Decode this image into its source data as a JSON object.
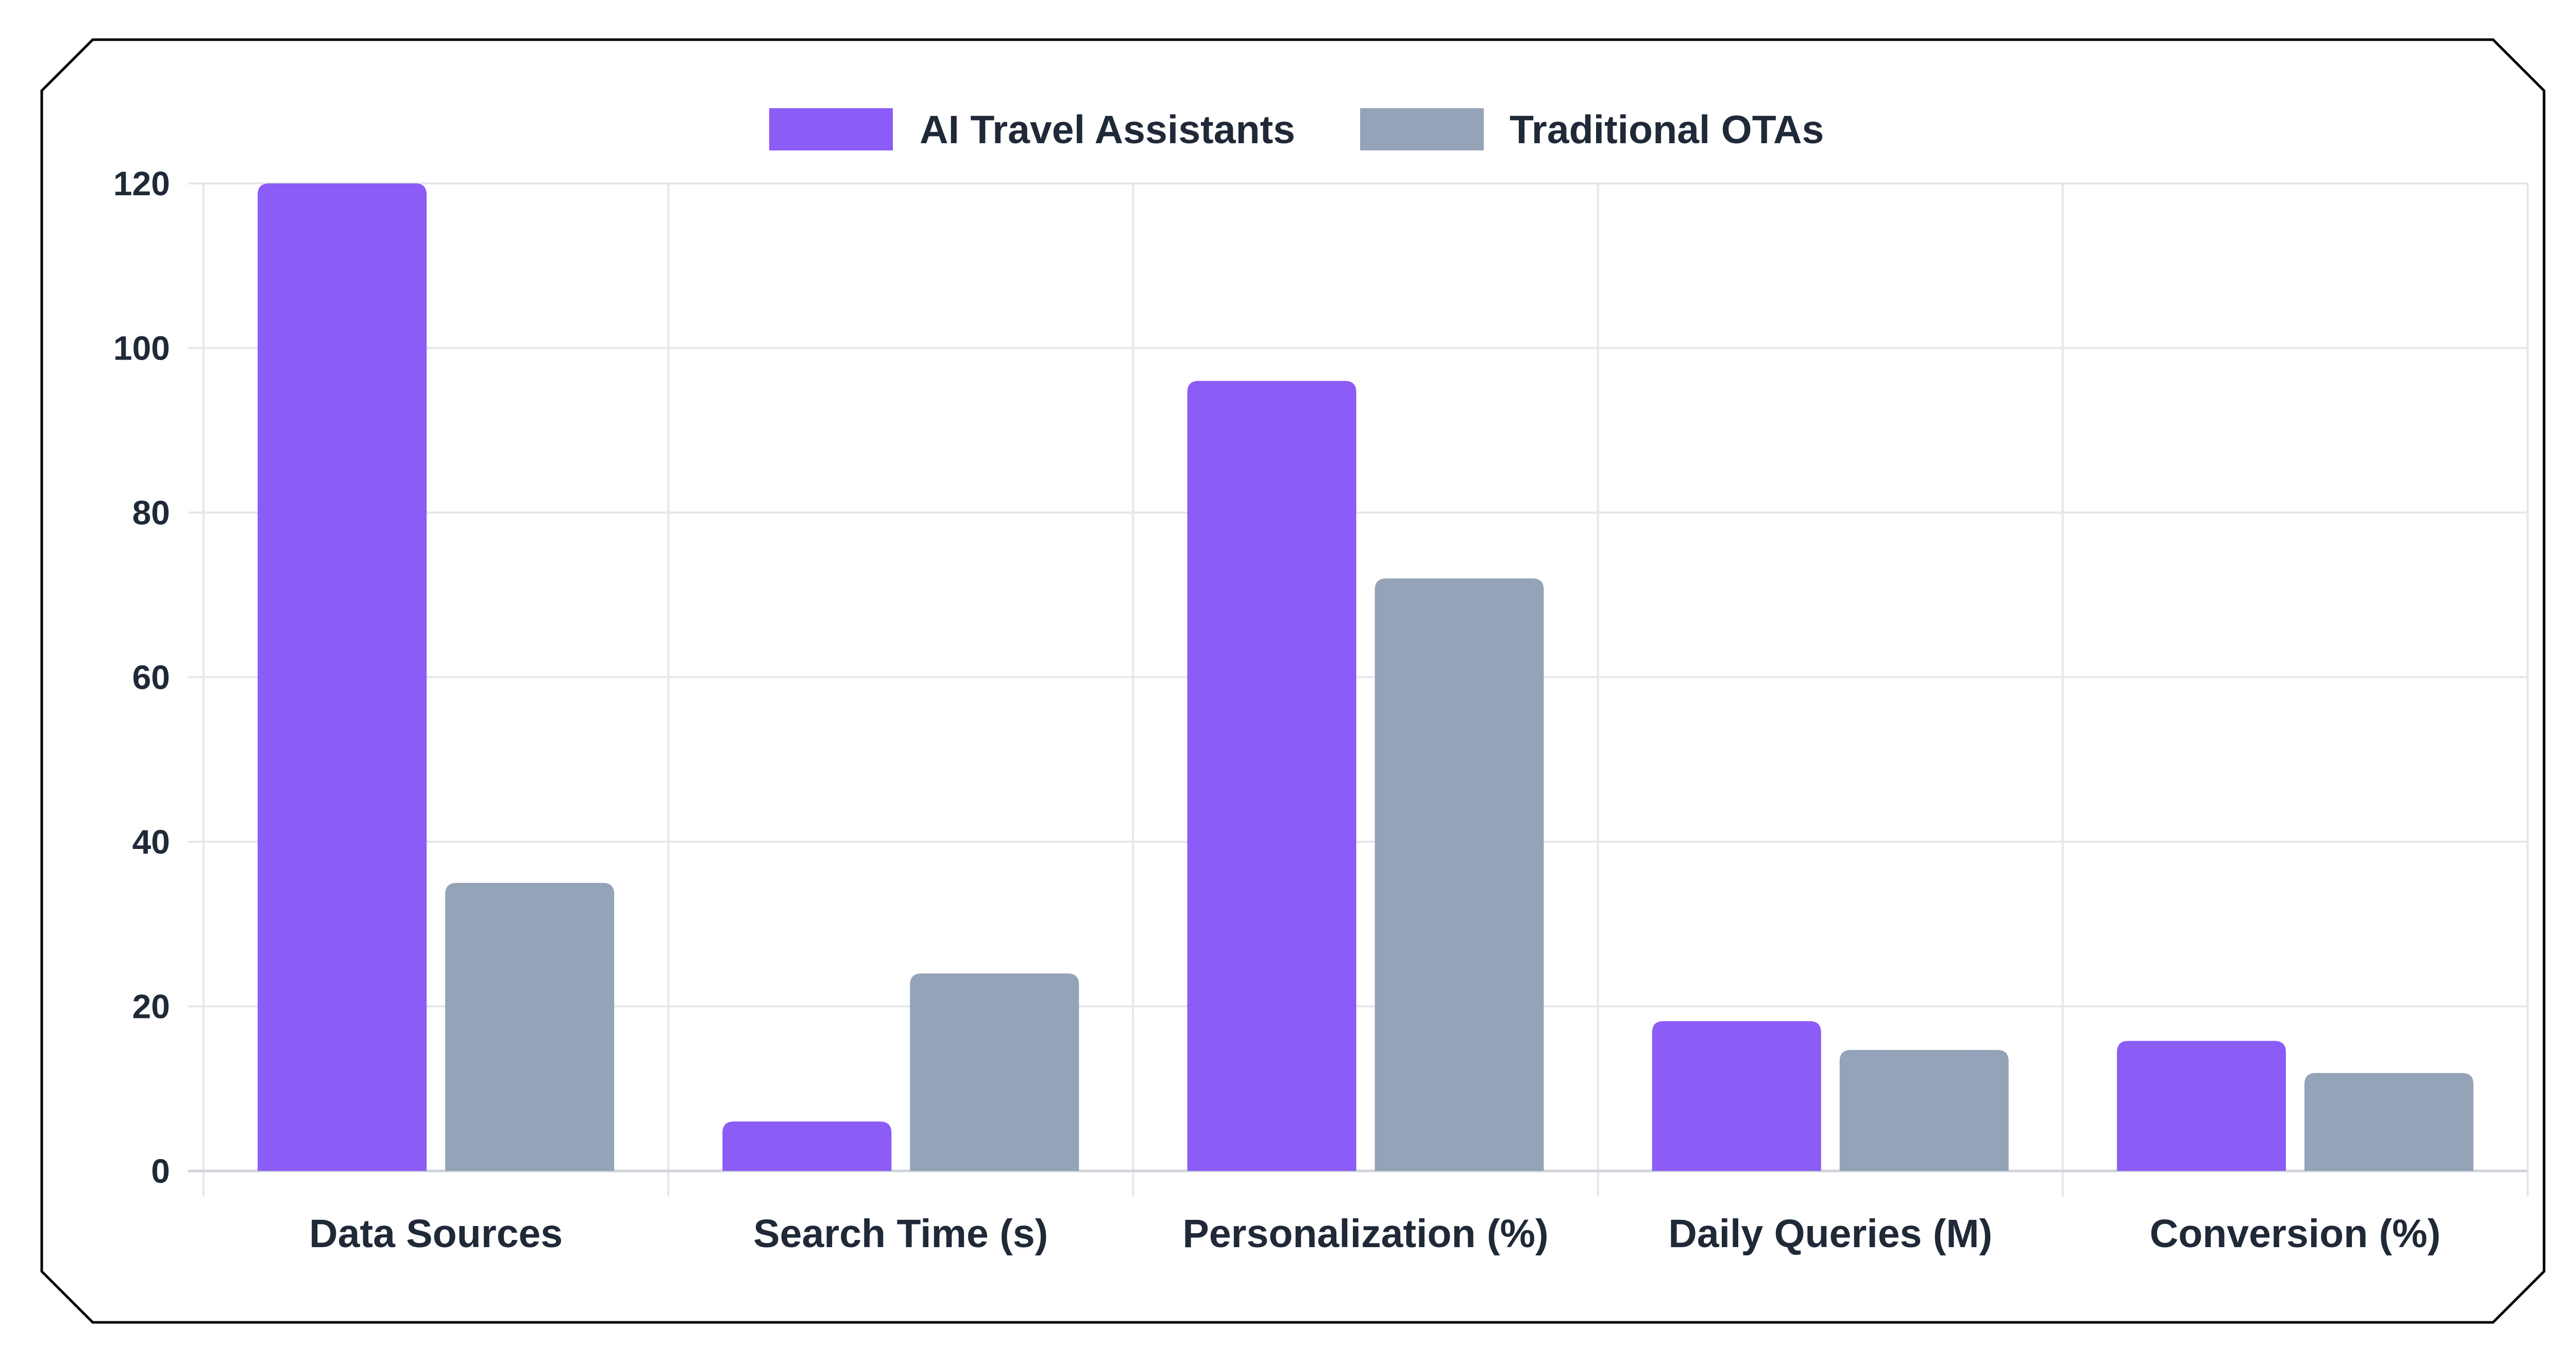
{
  "chart_data": {
    "type": "bar",
    "categories": [
      "Data Sources",
      "Search Time (s)",
      "Personalization (%)",
      "Daily Queries (M)",
      "Conversion (%)"
    ],
    "series": [
      {
        "name": "AI Travel Assistants",
        "color": "#8b5cf6",
        "values": [
          120,
          6,
          96,
          18.2,
          15.8
        ]
      },
      {
        "name": "Traditional OTAs",
        "color": "#94a3b8",
        "values": [
          35,
          24,
          72,
          14.7,
          11.9
        ]
      }
    ],
    "yticks": [
      0,
      20,
      40,
      60,
      80,
      100,
      120
    ],
    "ylim": [
      0,
      120
    ],
    "grid": true,
    "legend": "top-center"
  }
}
